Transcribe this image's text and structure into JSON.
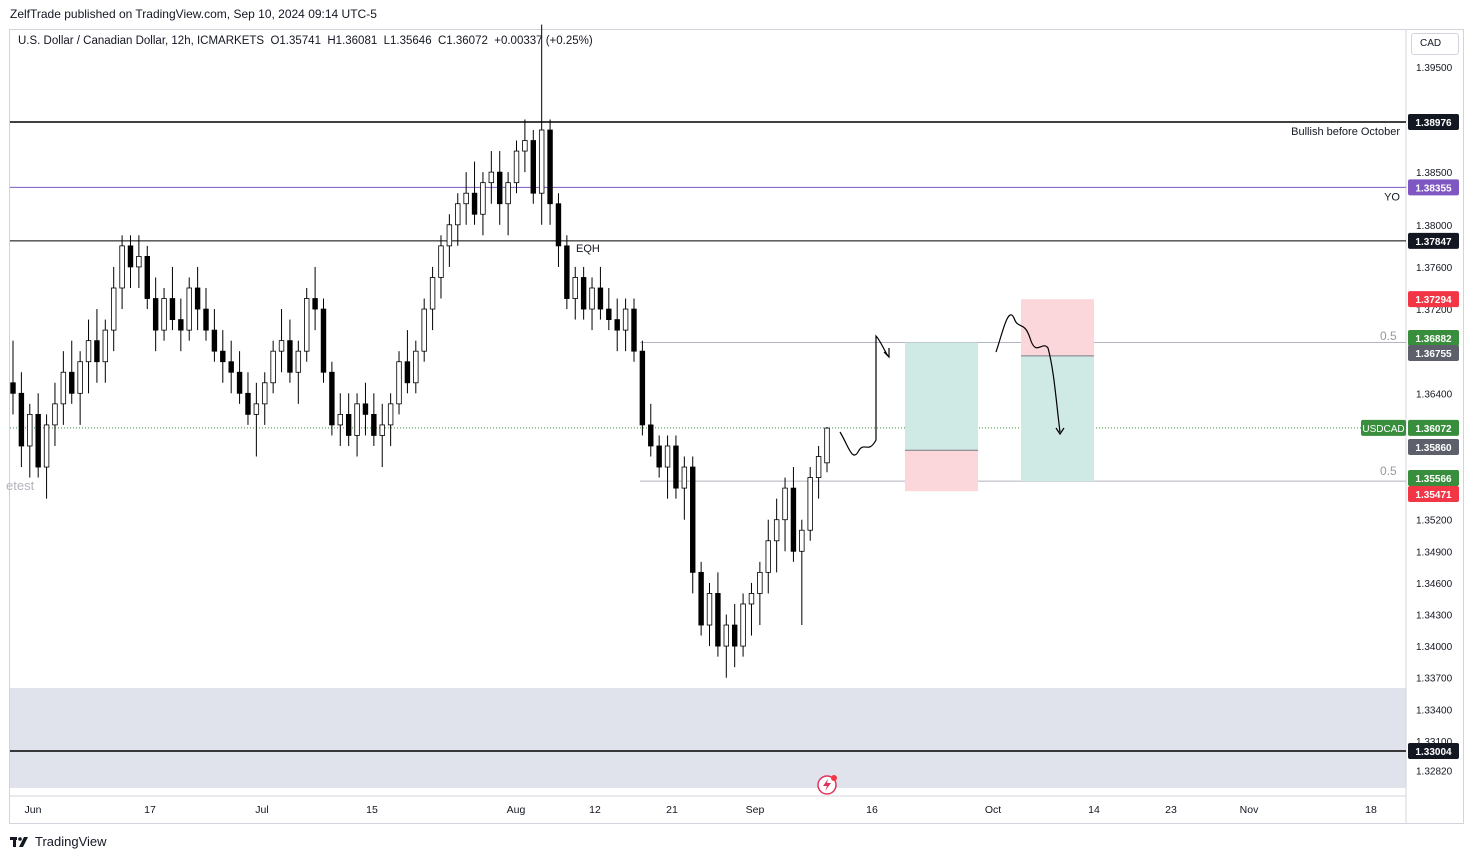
{
  "header": {
    "published": "ZelfTrade published on TradingView.com, Sep 10, 2024 09:14 UTC-5",
    "symbol_line": "U.S. Dollar / Canadian Dollar, 12h, ICMARKETS  O1.35741  H1.36081  L1.35646  C1.36072  +0.00337 (+0.25%)"
  },
  "toolbar": {
    "currency": "CAD"
  },
  "footer": {
    "brand": "TradingView"
  },
  "chart_data": {
    "type": "candlestick",
    "symbol": "USDCAD",
    "interval": "12h",
    "ohlc_last": {
      "open": 1.35741,
      "high": 1.36081,
      "low": 1.35646,
      "close": 1.36072,
      "change": "+0.00337 (+0.25%)"
    },
    "y_ticks": [
      "1.39500",
      "1.38500",
      "1.38000",
      "1.37600",
      "1.37200",
      "1.36400",
      "1.35200",
      "1.34900",
      "1.34600",
      "1.34300",
      "1.34000",
      "1.33700",
      "1.33400",
      "1.33100",
      "1.32820"
    ],
    "x_ticks": [
      "Jun",
      "17",
      "Jul",
      "15",
      "Aug",
      "12",
      "21",
      "Sep",
      "16",
      "Oct",
      "14",
      "23",
      "Nov",
      "18"
    ],
    "colors": {
      "up": "#ffffff",
      "down": "#000000",
      "wick": "#000000",
      "grid": "none",
      "purple": "#7e57c2",
      "green_zone": "#cfeae5",
      "red_zone": "#fbd7db",
      "price_green": "#388e3c",
      "price_red": "#f23645",
      "price_gray": "#5d606b"
    },
    "horizontal_lines": [
      {
        "price": 1.38976,
        "label": "Bullish before October",
        "color": "#000000"
      },
      {
        "price": 1.38355,
        "label": "YO",
        "color": "#7e57c2"
      },
      {
        "price": 1.37847,
        "label": "",
        "color": "#000000"
      },
      {
        "price": 1.33004,
        "label": "",
        "color": "#000000"
      }
    ],
    "annotations": [
      {
        "text": "EQH"
      },
      {
        "text": "0.5"
      },
      {
        "text": "0.5"
      },
      {
        "text": "etest"
      }
    ],
    "price_tags": [
      {
        "value": "1.38976",
        "style": "dark"
      },
      {
        "value": "1.38355",
        "style": "purple"
      },
      {
        "value": "1.37847",
        "style": "dark"
      },
      {
        "value": "1.37294",
        "style": "red"
      },
      {
        "value": "1.36882",
        "style": "green"
      },
      {
        "value": "1.36755",
        "style": "gray"
      },
      {
        "value": "1.36072",
        "style": "green",
        "symbol": "USDCAD"
      },
      {
        "value": "1.35860",
        "style": "gray"
      },
      {
        "value": "1.35566",
        "style": "green"
      },
      {
        "value": "1.35471",
        "style": "red"
      },
      {
        "value": "1.33004",
        "style": "dark"
      }
    ],
    "positions": [
      {
        "side": "long",
        "entry": 1.3586,
        "target": 1.36882,
        "stop": 1.35471
      },
      {
        "side": "short",
        "entry": 1.36755,
        "target": 1.35566,
        "stop": 1.37294
      }
    ],
    "candles": [
      [
        1.365,
        1.369,
        1.362,
        1.364
      ],
      [
        1.364,
        1.366,
        1.357,
        1.359
      ],
      [
        1.359,
        1.363,
        1.356,
        1.362
      ],
      [
        1.362,
        1.364,
        1.356,
        1.357
      ],
      [
        1.357,
        1.362,
        1.354,
        1.361
      ],
      [
        1.361,
        1.365,
        1.359,
        1.363
      ],
      [
        1.363,
        1.368,
        1.361,
        1.366
      ],
      [
        1.366,
        1.369,
        1.363,
        1.364
      ],
      [
        1.364,
        1.368,
        1.361,
        1.367
      ],
      [
        1.367,
        1.371,
        1.364,
        1.369
      ],
      [
        1.369,
        1.372,
        1.365,
        1.367
      ],
      [
        1.367,
        1.371,
        1.365,
        1.37
      ],
      [
        1.37,
        1.376,
        1.368,
        1.374
      ],
      [
        1.374,
        1.379,
        1.372,
        1.378
      ],
      [
        1.378,
        1.379,
        1.374,
        1.376
      ],
      [
        1.376,
        1.379,
        1.374,
        1.377
      ],
      [
        1.377,
        1.378,
        1.372,
        1.373
      ],
      [
        1.373,
        1.375,
        1.368,
        1.37
      ],
      [
        1.37,
        1.374,
        1.369,
        1.373
      ],
      [
        1.373,
        1.376,
        1.37,
        1.371
      ],
      [
        1.371,
        1.373,
        1.368,
        1.37
      ],
      [
        1.37,
        1.375,
        1.369,
        1.374
      ],
      [
        1.374,
        1.376,
        1.37,
        1.372
      ],
      [
        1.372,
        1.374,
        1.369,
        1.37
      ],
      [
        1.37,
        1.372,
        1.367,
        1.368
      ],
      [
        1.368,
        1.37,
        1.365,
        1.367
      ],
      [
        1.367,
        1.369,
        1.364,
        1.366
      ],
      [
        1.366,
        1.368,
        1.363,
        1.364
      ],
      [
        1.364,
        1.366,
        1.361,
        1.362
      ],
      [
        1.362,
        1.365,
        1.358,
        1.363
      ],
      [
        1.363,
        1.366,
        1.361,
        1.365
      ],
      [
        1.365,
        1.369,
        1.364,
        1.368
      ],
      [
        1.368,
        1.372,
        1.366,
        1.369
      ],
      [
        1.369,
        1.371,
        1.365,
        1.366
      ],
      [
        1.366,
        1.369,
        1.363,
        1.368
      ],
      [
        1.368,
        1.374,
        1.367,
        1.373
      ],
      [
        1.373,
        1.376,
        1.37,
        1.372
      ],
      [
        1.372,
        1.373,
        1.365,
        1.366
      ],
      [
        1.366,
        1.367,
        1.36,
        1.361
      ],
      [
        1.361,
        1.364,
        1.359,
        1.362
      ],
      [
        1.362,
        1.364,
        1.359,
        1.36
      ],
      [
        1.36,
        1.364,
        1.358,
        1.363
      ],
      [
        1.363,
        1.365,
        1.36,
        1.362
      ],
      [
        1.362,
        1.364,
        1.359,
        1.36
      ],
      [
        1.36,
        1.363,
        1.357,
        1.361
      ],
      [
        1.361,
        1.364,
        1.359,
        1.363
      ],
      [
        1.363,
        1.368,
        1.362,
        1.367
      ],
      [
        1.367,
        1.37,
        1.364,
        1.365
      ],
      [
        1.365,
        1.369,
        1.364,
        1.368
      ],
      [
        1.368,
        1.373,
        1.367,
        1.372
      ],
      [
        1.372,
        1.376,
        1.37,
        1.375
      ],
      [
        1.375,
        1.379,
        1.373,
        1.378
      ],
      [
        1.378,
        1.381,
        1.376,
        1.38
      ],
      [
        1.38,
        1.383,
        1.378,
        1.382
      ],
      [
        1.382,
        1.385,
        1.38,
        1.383
      ],
      [
        1.383,
        1.386,
        1.38,
        1.381
      ],
      [
        1.381,
        1.385,
        1.379,
        1.384
      ],
      [
        1.384,
        1.387,
        1.382,
        1.385
      ],
      [
        1.385,
        1.387,
        1.38,
        1.382
      ],
      [
        1.382,
        1.385,
        1.379,
        1.384
      ],
      [
        1.384,
        1.388,
        1.383,
        1.387
      ],
      [
        1.387,
        1.39,
        1.385,
        1.388
      ],
      [
        1.388,
        1.389,
        1.382,
        1.383
      ],
      [
        1.383,
        1.399,
        1.38,
        1.389
      ],
      [
        1.389,
        1.39,
        1.38,
        1.382
      ],
      [
        1.382,
        1.383,
        1.376,
        1.378
      ],
      [
        1.378,
        1.379,
        1.372,
        1.373
      ],
      [
        1.373,
        1.376,
        1.371,
        1.375
      ],
      [
        1.375,
        1.376,
        1.371,
        1.372
      ],
      [
        1.372,
        1.375,
        1.37,
        1.374
      ],
      [
        1.374,
        1.376,
        1.371,
        1.372
      ],
      [
        1.372,
        1.374,
        1.37,
        1.371
      ],
      [
        1.371,
        1.373,
        1.368,
        1.37
      ],
      [
        1.37,
        1.373,
        1.368,
        1.372
      ],
      [
        1.372,
        1.373,
        1.367,
        1.368
      ],
      [
        1.368,
        1.369,
        1.36,
        1.361
      ],
      [
        1.361,
        1.363,
        1.358,
        1.359
      ],
      [
        1.359,
        1.36,
        1.356,
        1.357
      ],
      [
        1.357,
        1.36,
        1.354,
        1.359
      ],
      [
        1.359,
        1.36,
        1.354,
        1.355
      ],
      [
        1.355,
        1.358,
        1.352,
        1.357
      ],
      [
        1.357,
        1.358,
        1.345,
        1.347
      ],
      [
        1.347,
        1.348,
        1.341,
        1.342
      ],
      [
        1.342,
        1.346,
        1.34,
        1.345
      ],
      [
        1.345,
        1.347,
        1.339,
        1.34
      ],
      [
        1.34,
        1.343,
        1.337,
        1.342
      ],
      [
        1.342,
        1.344,
        1.338,
        1.34
      ],
      [
        1.34,
        1.345,
        1.339,
        1.344
      ],
      [
        1.344,
        1.346,
        1.341,
        1.345
      ],
      [
        1.345,
        1.348,
        1.342,
        1.347
      ],
      [
        1.347,
        1.352,
        1.345,
        1.35
      ],
      [
        1.35,
        1.354,
        1.347,
        1.352
      ],
      [
        1.352,
        1.356,
        1.349,
        1.355
      ],
      [
        1.355,
        1.357,
        1.348,
        1.349
      ],
      [
        1.349,
        1.352,
        1.342,
        1.351
      ],
      [
        1.351,
        1.357,
        1.35,
        1.356
      ],
      [
        1.356,
        1.359,
        1.354,
        1.358
      ],
      [
        1.3574,
        1.3608,
        1.3565,
        1.3607
      ]
    ]
  }
}
